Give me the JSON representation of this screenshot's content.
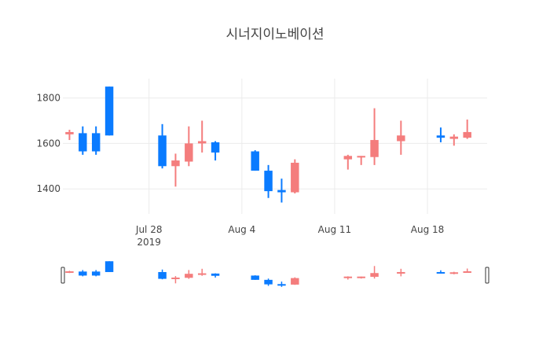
{
  "chart_data": {
    "type": "candlestick",
    "title": "시너지이노베이션",
    "x_axis": {
      "tick_labels": [
        "Jul 28",
        "Aug 4",
        "Aug 11",
        "Aug 18"
      ],
      "tick_dates": [
        "2019-07-28",
        "2019-08-04",
        "2019-08-11",
        "2019-08-18"
      ],
      "year_label": "2019",
      "range": [
        "2019-07-22",
        "2019-08-22"
      ]
    },
    "y_axis": {
      "tick_labels": [
        "1400",
        "1600",
        "1800"
      ],
      "tick_values": [
        1400,
        1600,
        1800
      ],
      "range": [
        1290,
        1885
      ]
    },
    "grid": true,
    "rangeslider": true,
    "colors": {
      "increasing": "#f47d7d",
      "decreasing": "#0a7bff",
      "grid": "#ebebeb",
      "text": "#444444"
    },
    "candles": [
      {
        "date": "2019-07-22",
        "open": 1640,
        "high": 1660,
        "low": 1615,
        "close": 1650
      },
      {
        "date": "2019-07-23",
        "open": 1645,
        "high": 1675,
        "low": 1550,
        "close": 1565
      },
      {
        "date": "2019-07-24",
        "open": 1645,
        "high": 1675,
        "low": 1550,
        "close": 1565
      },
      {
        "date": "2019-07-25",
        "open": 1850,
        "high": 1850,
        "low": 1635,
        "close": 1635
      },
      {
        "date": "2019-07-29",
        "open": 1635,
        "high": 1685,
        "low": 1490,
        "close": 1500
      },
      {
        "date": "2019-07-30",
        "open": 1500,
        "high": 1555,
        "low": 1410,
        "close": 1525
      },
      {
        "date": "2019-07-31",
        "open": 1520,
        "high": 1675,
        "low": 1500,
        "close": 1600
      },
      {
        "date": "2019-08-01",
        "open": 1600,
        "high": 1700,
        "low": 1560,
        "close": 1610
      },
      {
        "date": "2019-08-02",
        "open": 1605,
        "high": 1610,
        "low": 1525,
        "close": 1560
      },
      {
        "date": "2019-08-05",
        "open": 1565,
        "high": 1570,
        "low": 1480,
        "close": 1480
      },
      {
        "date": "2019-08-06",
        "open": 1480,
        "high": 1505,
        "low": 1360,
        "close": 1390
      },
      {
        "date": "2019-08-07",
        "open": 1395,
        "high": 1445,
        "low": 1340,
        "close": 1385
      },
      {
        "date": "2019-08-08",
        "open": 1385,
        "high": 1530,
        "low": 1380,
        "close": 1515
      },
      {
        "date": "2019-08-12",
        "open": 1530,
        "high": 1550,
        "low": 1485,
        "close": 1545
      },
      {
        "date": "2019-08-13",
        "open": 1538,
        "high": 1545,
        "low": 1505,
        "close": 1545
      },
      {
        "date": "2019-08-14",
        "open": 1540,
        "high": 1755,
        "low": 1505,
        "close": 1615
      },
      {
        "date": "2019-08-16",
        "open": 1610,
        "high": 1700,
        "low": 1550,
        "close": 1635
      },
      {
        "date": "2019-08-19",
        "open": 1635,
        "high": 1670,
        "low": 1605,
        "close": 1625
      },
      {
        "date": "2019-08-20",
        "open": 1620,
        "high": 1640,
        "low": 1590,
        "close": 1630
      },
      {
        "date": "2019-08-21",
        "open": 1625,
        "high": 1705,
        "low": 1620,
        "close": 1650
      }
    ]
  }
}
